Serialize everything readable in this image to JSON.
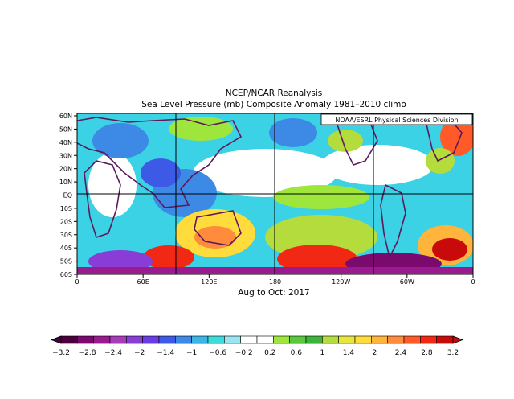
{
  "title": "NCEP/NCAR Reanalysis",
  "subtitle": "Sea Level Pressure (mb) Composite Anomaly 1981–2010 climo",
  "credit": "NOAA/ESRL Physical Sciences Division",
  "period": "Aug to Oct: 2017",
  "lat_ticks": [
    "60N",
    "50N",
    "40N",
    "30N",
    "20N",
    "10N",
    "EQ",
    "10S",
    "20S",
    "30S",
    "40S",
    "50S",
    "60S"
  ],
  "lon_ticks": [
    "0",
    "60E",
    "120E",
    "180",
    "120W",
    "60W",
    "0"
  ],
  "colorbar": {
    "labels": [
      "−3.2",
      "−2.8",
      "−2.4",
      "−2",
      "−1.4",
      "−1",
      "−0.6",
      "−0.2",
      "0.2",
      "0.6",
      "1",
      "1.4",
      "2",
      "2.4",
      "2.8",
      "3.2"
    ],
    "colors": [
      "#4a0040",
      "#7a0a6e",
      "#9a1a90",
      "#a83cb8",
      "#8a3cd6",
      "#6a3ce6",
      "#3c5ae6",
      "#3c8ae6",
      "#3cb4e6",
      "#3cdcdc",
      "#9ae6f0",
      "#ffffff",
      "#ffffff",
      "#9ee63c",
      "#5ac83c",
      "#3cb43c",
      "#b4dc3c",
      "#e6e63c",
      "#ffdc3c",
      "#ffb43c",
      "#ff8c3c",
      "#ff5a28",
      "#f02814",
      "#c80a0a"
    ]
  }
}
